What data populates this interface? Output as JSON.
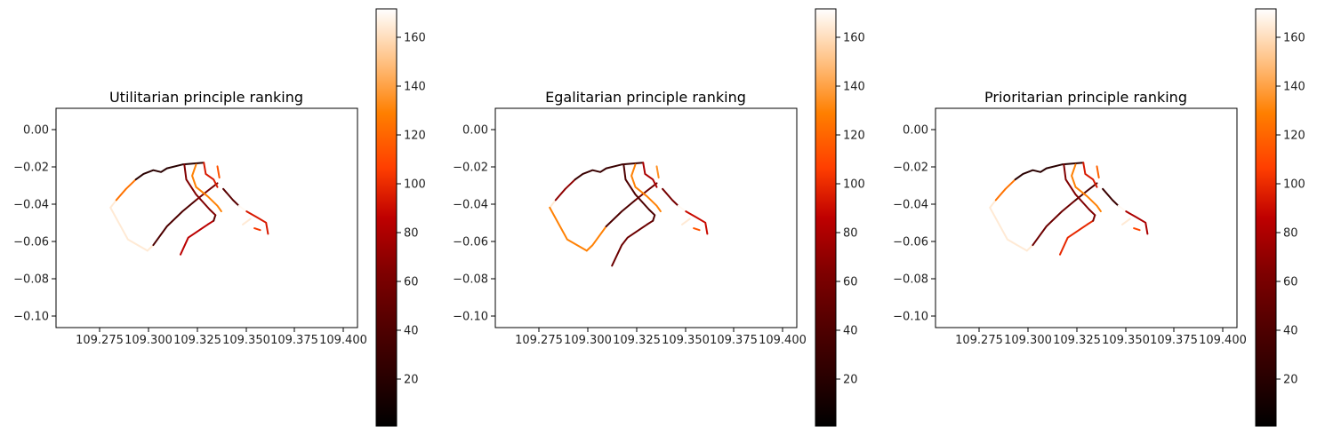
{
  "chart_data": [
    {
      "type": "line",
      "title": "Utilitarian principle ranking",
      "xlim": [
        109.255,
        109.41
      ],
      "ylim": [
        -0.106,
        0.011
      ],
      "xticks": [
        "109.275",
        "109.300",
        "109.325",
        "109.350",
        "109.375",
        "109.400"
      ],
      "yticks": [
        "0.00",
        "−0.02",
        "−0.04",
        "−0.06",
        "−0.08",
        "−0.10"
      ],
      "colorbar": {
        "cmap": "gist_heat",
        "range": [
          1,
          172
        ],
        "ticks": [
          "20",
          "40",
          "60",
          "80",
          "100",
          "120",
          "140",
          "160"
        ]
      },
      "grid": false,
      "series": [
        {
          "values": [
            [
              109.302,
              -0.065
            ],
            [
              109.292,
              -0.059
            ],
            [
              109.283,
              -0.042
            ],
            [
              109.286,
              -0.038
            ]
          ],
          "rank": 165
        },
        {
          "values": [
            [
              109.286,
              -0.038
            ],
            [
              109.291,
              -0.032
            ],
            [
              109.296,
              -0.027
            ]
          ],
          "rank": 125
        },
        {
          "values": [
            [
              109.296,
              -0.027
            ],
            [
              109.3,
              -0.024
            ],
            [
              109.305,
              -0.022
            ],
            [
              109.309,
              -0.023
            ],
            [
              109.312,
              -0.021
            ],
            [
              109.32,
              -0.019
            ],
            [
              109.331,
              -0.018
            ]
          ],
          "rank": 22
        },
        {
          "values": [
            [
              109.302,
              -0.065
            ],
            [
              109.305,
              -0.062
            ]
          ],
          "rank": 165
        },
        {
          "values": [
            [
              109.305,
              -0.062
            ],
            [
              109.312,
              -0.052
            ],
            [
              109.32,
              -0.044
            ],
            [
              109.327,
              -0.038
            ]
          ],
          "rank": 40
        },
        {
          "values": [
            [
              109.327,
              -0.038
            ],
            [
              109.333,
              -0.033
            ],
            [
              109.338,
              -0.029
            ]
          ],
          "rank": 60
        },
        {
          "values": [
            [
              109.319,
              -0.067
            ],
            [
              109.323,
              -0.058
            ],
            [
              109.333,
              -0.051
            ],
            [
              109.336,
              -0.049
            ]
          ],
          "rank": 85
        },
        {
          "values": [
            [
              109.336,
              -0.049
            ],
            [
              109.337,
              -0.046
            ]
          ],
          "rank": 45
        },
        {
          "values": [
            [
              109.337,
              -0.046
            ],
            [
              109.334,
              -0.043
            ],
            [
              109.327,
              -0.035
            ],
            [
              109.322,
              -0.027
            ],
            [
              109.321,
              -0.019
            ]
          ],
          "rank": 65
        },
        {
          "values": [
            [
              109.327,
              -0.019
            ],
            [
              109.325,
              -0.025
            ],
            [
              109.327,
              -0.031
            ],
            [
              109.333,
              -0.036
            ],
            [
              109.338,
              -0.041
            ],
            [
              109.34,
              -0.044
            ]
          ],
          "rank": 130
        },
        {
          "values": [
            [
              109.331,
              -0.018
            ],
            [
              109.332,
              -0.024
            ],
            [
              109.336,
              -0.027
            ],
            [
              109.338,
              -0.031
            ]
          ],
          "rank": 95
        },
        {
          "values": [
            [
              109.338,
              -0.02
            ],
            [
              109.339,
              -0.026
            ]
          ],
          "rank": 115
        },
        {
          "values": [
            [
              109.341,
              -0.032
            ],
            [
              109.346,
              -0.038
            ],
            [
              109.349,
              -0.041
            ]
          ],
          "rank": 45
        },
        {
          "values": [
            [
              109.349,
              -0.041
            ],
            [
              109.353,
              -0.044
            ]
          ],
          "rank": 170
        },
        {
          "values": [
            [
              109.353,
              -0.044
            ],
            [
              109.358,
              -0.047
            ],
            [
              109.363,
              -0.05
            ],
            [
              109.364,
              -0.056
            ]
          ],
          "rank": 95
        },
        {
          "values": [
            [
              109.351,
              -0.051
            ],
            [
              109.355,
              -0.048
            ]
          ],
          "rank": 165
        },
        {
          "values": [
            [
              109.357,
              -0.053
            ],
            [
              109.36,
              -0.054
            ]
          ],
          "rank": 105
        }
      ]
    },
    {
      "type": "line",
      "title": "Egalitarian principle ranking",
      "xlim": [
        109.255,
        109.41
      ],
      "ylim": [
        -0.106,
        0.011
      ],
      "xticks": [
        "109.275",
        "109.300",
        "109.325",
        "109.350",
        "109.375",
        "109.400"
      ],
      "yticks": [
        "0.00",
        "−0.02",
        "−0.04",
        "−0.06",
        "−0.08",
        "−0.10"
      ],
      "colorbar": {
        "cmap": "gist_heat",
        "range": [
          1,
          172
        ],
        "ticks": [
          "20",
          "40",
          "60",
          "80",
          "100",
          "120",
          "140",
          "160"
        ]
      },
      "grid": false,
      "series": [
        {
          "values": [
            [
              109.283,
              -0.042
            ],
            [
              109.286,
              -0.038
            ]
          ],
          "rank": 165
        },
        {
          "values": [
            [
              109.283,
              -0.042
            ],
            [
              109.292,
              -0.059
            ],
            [
              109.302,
              -0.065
            ]
          ],
          "rank": 130
        },
        {
          "values": [
            [
              109.286,
              -0.038
            ],
            [
              109.291,
              -0.032
            ],
            [
              109.296,
              -0.027
            ]
          ],
          "rank": 70
        },
        {
          "values": [
            [
              109.296,
              -0.027
            ],
            [
              109.3,
              -0.024
            ],
            [
              109.305,
              -0.022
            ],
            [
              109.309,
              -0.023
            ],
            [
              109.312,
              -0.021
            ],
            [
              109.32,
              -0.019
            ],
            [
              109.331,
              -0.018
            ]
          ],
          "rank": 30
        },
        {
          "values": [
            [
              109.302,
              -0.065
            ],
            [
              109.305,
              -0.062
            ],
            [
              109.312,
              -0.052
            ]
          ],
          "rank": 130
        },
        {
          "values": [
            [
              109.312,
              -0.052
            ],
            [
              109.32,
              -0.044
            ],
            [
              109.327,
              -0.038
            ]
          ],
          "rank": 40
        },
        {
          "values": [
            [
              109.327,
              -0.038
            ],
            [
              109.333,
              -0.033
            ],
            [
              109.338,
              -0.029
            ]
          ],
          "rank": 55
        },
        {
          "values": [
            [
              109.315,
              -0.073
            ],
            [
              109.32,
              -0.062
            ],
            [
              109.323,
              -0.058
            ],
            [
              109.333,
              -0.051
            ],
            [
              109.336,
              -0.049
            ]
          ],
          "rank": 55
        },
        {
          "values": [
            [
              109.336,
              -0.049
            ],
            [
              109.337,
              -0.046
            ],
            [
              109.334,
              -0.043
            ],
            [
              109.327,
              -0.035
            ],
            [
              109.322,
              -0.027
            ],
            [
              109.321,
              -0.019
            ]
          ],
          "rank": 40
        },
        {
          "values": [
            [
              109.327,
              -0.019
            ],
            [
              109.325,
              -0.025
            ],
            [
              109.327,
              -0.031
            ],
            [
              109.333,
              -0.036
            ],
            [
              109.338,
              -0.041
            ],
            [
              109.34,
              -0.044
            ]
          ],
          "rank": 130
        },
        {
          "values": [
            [
              109.331,
              -0.018
            ],
            [
              109.332,
              -0.024
            ],
            [
              109.336,
              -0.027
            ],
            [
              109.338,
              -0.031
            ]
          ],
          "rank": 80
        },
        {
          "values": [
            [
              109.338,
              -0.02
            ],
            [
              109.339,
              -0.026
            ]
          ],
          "rank": 135
        },
        {
          "values": [
            [
              109.341,
              -0.032
            ],
            [
              109.346,
              -0.038
            ],
            [
              109.349,
              -0.041
            ]
          ],
          "rank": 60
        },
        {
          "values": [
            [
              109.349,
              -0.041
            ],
            [
              109.353,
              -0.044
            ]
          ],
          "rank": 170
        },
        {
          "values": [
            [
              109.353,
              -0.044
            ],
            [
              109.358,
              -0.047
            ],
            [
              109.363,
              -0.05
            ],
            [
              109.364,
              -0.056
            ]
          ],
          "rank": 90
        },
        {
          "values": [
            [
              109.351,
              -0.051
            ],
            [
              109.355,
              -0.048
            ]
          ],
          "rank": 165
        },
        {
          "values": [
            [
              109.357,
              -0.053
            ],
            [
              109.36,
              -0.054
            ]
          ],
          "rank": 115
        }
      ]
    },
    {
      "type": "line",
      "title": "Prioritarian principle ranking",
      "xlim": [
        109.255,
        109.41
      ],
      "ylim": [
        -0.106,
        0.011
      ],
      "xticks": [
        "109.275",
        "109.300",
        "109.325",
        "109.350",
        "109.375",
        "109.400"
      ],
      "yticks": [
        "0.00",
        "−0.02",
        "−0.04",
        "−0.06",
        "−0.08",
        "−0.10"
      ],
      "colorbar": {
        "cmap": "gist_heat",
        "range": [
          1,
          172
        ],
        "ticks": [
          "20",
          "40",
          "60",
          "80",
          "100",
          "120",
          "140",
          "160"
        ]
      },
      "grid": false,
      "series": [
        {
          "values": [
            [
              109.302,
              -0.065
            ],
            [
              109.292,
              -0.059
            ],
            [
              109.283,
              -0.042
            ],
            [
              109.286,
              -0.038
            ]
          ],
          "rank": 165
        },
        {
          "values": [
            [
              109.286,
              -0.038
            ],
            [
              109.291,
              -0.032
            ],
            [
              109.296,
              -0.027
            ]
          ],
          "rank": 125
        },
        {
          "values": [
            [
              109.296,
              -0.027
            ],
            [
              109.3,
              -0.024
            ],
            [
              109.305,
              -0.022
            ],
            [
              109.309,
              -0.023
            ],
            [
              109.312,
              -0.021
            ],
            [
              109.32,
              -0.019
            ],
            [
              109.331,
              -0.018
            ]
          ],
          "rank": 22
        },
        {
          "values": [
            [
              109.302,
              -0.065
            ],
            [
              109.305,
              -0.062
            ]
          ],
          "rank": 165
        },
        {
          "values": [
            [
              109.305,
              -0.062
            ],
            [
              109.312,
              -0.052
            ],
            [
              109.32,
              -0.044
            ],
            [
              109.327,
              -0.038
            ]
          ],
          "rank": 55
        },
        {
          "values": [
            [
              109.327,
              -0.038
            ],
            [
              109.333,
              -0.033
            ],
            [
              109.338,
              -0.029
            ]
          ],
          "rank": 40
        },
        {
          "values": [
            [
              109.319,
              -0.067
            ],
            [
              109.323,
              -0.058
            ],
            [
              109.333,
              -0.051
            ],
            [
              109.336,
              -0.049
            ]
          ],
          "rank": 100
        },
        {
          "values": [
            [
              109.336,
              -0.049
            ],
            [
              109.337,
              -0.046
            ]
          ],
          "rank": 60
        },
        {
          "values": [
            [
              109.337,
              -0.046
            ],
            [
              109.334,
              -0.043
            ],
            [
              109.327,
              -0.035
            ],
            [
              109.322,
              -0.027
            ],
            [
              109.321,
              -0.019
            ]
          ],
          "rank": 65
        },
        {
          "values": [
            [
              109.327,
              -0.019
            ],
            [
              109.325,
              -0.025
            ],
            [
              109.327,
              -0.031
            ],
            [
              109.333,
              -0.036
            ],
            [
              109.338,
              -0.041
            ],
            [
              109.34,
              -0.044
            ]
          ],
          "rank": 130
        },
        {
          "values": [
            [
              109.331,
              -0.018
            ],
            [
              109.332,
              -0.024
            ],
            [
              109.336,
              -0.027
            ],
            [
              109.338,
              -0.031
            ]
          ],
          "rank": 95
        },
        {
          "values": [
            [
              109.338,
              -0.02
            ],
            [
              109.339,
              -0.026
            ]
          ],
          "rank": 120
        },
        {
          "values": [
            [
              109.341,
              -0.032
            ],
            [
              109.346,
              -0.038
            ],
            [
              109.349,
              -0.041
            ]
          ],
          "rank": 30
        },
        {
          "values": [
            [
              109.349,
              -0.041
            ],
            [
              109.353,
              -0.044
            ]
          ],
          "rank": 170
        },
        {
          "values": [
            [
              109.353,
              -0.044
            ],
            [
              109.358,
              -0.047
            ],
            [
              109.363,
              -0.05
            ],
            [
              109.364,
              -0.056
            ]
          ],
          "rank": 80
        },
        {
          "values": [
            [
              109.351,
              -0.051
            ],
            [
              109.355,
              -0.048
            ]
          ],
          "rank": 165
        },
        {
          "values": [
            [
              109.357,
              -0.053
            ],
            [
              109.36,
              -0.054
            ]
          ],
          "rank": 110
        }
      ]
    }
  ]
}
